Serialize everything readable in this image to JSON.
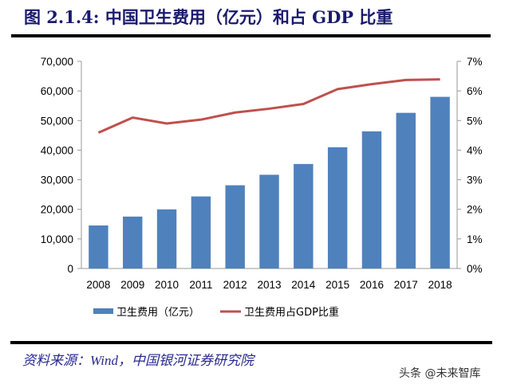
{
  "title": "图 2.1.4:  中国卫生费用（亿元）和占 GDP 比重",
  "source": "资料来源：Wind，中国银河证券研究院",
  "watermark": "头条 @未来智库",
  "chart_data": {
    "type": "bar+line",
    "categories": [
      "2008",
      "2009",
      "2010",
      "2011",
      "2012",
      "2013",
      "2014",
      "2015",
      "2016",
      "2017",
      "2018"
    ],
    "series": [
      {
        "name": "卫生费用（亿元）",
        "type": "bar",
        "axis": "left",
        "color": "#4f81bd",
        "values": [
          14535,
          17542,
          19980,
          24346,
          28119,
          31669,
          35312,
          40975,
          46345,
          52598,
          58000
        ]
      },
      {
        "name": "卫生费用占GDP比重",
        "type": "line",
        "axis": "right",
        "color": "#c0504d",
        "values": [
          4.59,
          5.1,
          4.9,
          5.03,
          5.27,
          5.4,
          5.56,
          6.06,
          6.23,
          6.37,
          6.39
        ]
      }
    ],
    "y_left": {
      "range": [
        0,
        70000
      ],
      "ticks": [
        "0",
        "10,000",
        "20,000",
        "30,000",
        "40,000",
        "50,000",
        "60,000",
        "70,000"
      ]
    },
    "y_right": {
      "range": [
        0,
        7
      ],
      "ticks": [
        "0%",
        "1%",
        "2%",
        "3%",
        "4%",
        "5%",
        "6%",
        "7%"
      ]
    },
    "grid": false,
    "legend": "bottom"
  }
}
